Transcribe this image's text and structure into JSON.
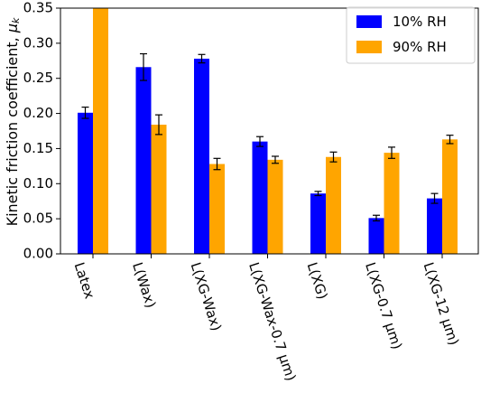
{
  "chart_data": {
    "type": "bar",
    "title": "",
    "xlabel": "",
    "ylabel": "Kinetic friction coefficient, μk",
    "ylabel_main": "Kinetic friction coefficient, ",
    "ylabel_symbol": "μ",
    "ylabel_subscript": "k",
    "ylim": [
      0,
      0.35
    ],
    "yticks": [
      0.0,
      0.05,
      0.1,
      0.15,
      0.2,
      0.25,
      0.3,
      0.35
    ],
    "ytick_labels": [
      "0.00",
      "0.05",
      "0.10",
      "0.15",
      "0.20",
      "0.25",
      "0.30",
      "0.35"
    ],
    "categories": [
      "Latex",
      "L(Wax)",
      "L(XG-Wax)",
      "L(XG-Wax-0.7 μm)",
      "L(XG)",
      "L(XG-0.7 μm)",
      "L(XG-12 μm)"
    ],
    "series": [
      {
        "name": "10% RH",
        "color": "#0000ff",
        "values": [
          0.201,
          0.266,
          0.278,
          0.16,
          0.086,
          0.051,
          0.079
        ],
        "errors": [
          0.008,
          0.019,
          0.006,
          0.007,
          0.003,
          0.004,
          0.007
        ]
      },
      {
        "name": "90% RH",
        "color": "#ffa500",
        "values": [
          0.35,
          0.184,
          0.128,
          0.134,
          0.138,
          0.144,
          0.163
        ],
        "errors": [
          0,
          0.014,
          0.008,
          0.005,
          0.007,
          0.008,
          0.006
        ]
      }
    ],
    "grid": false,
    "legend_position": "top-right"
  }
}
